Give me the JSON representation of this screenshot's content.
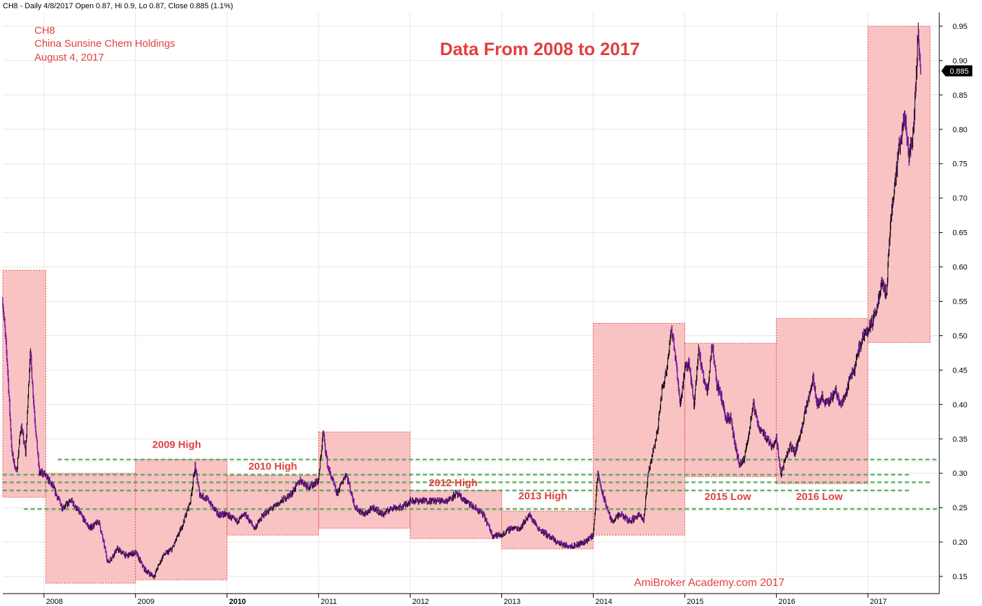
{
  "header": {
    "ohlc_line": "CH8 - Daily 4/8/2017 Open 0.87, Hi 0.9, Lo 0.87, Close 0.885 (1.1%)"
  },
  "info": {
    "ticker": "CH8",
    "company": "China Sunsine Chem Holdings",
    "date": "August 4, 2017"
  },
  "colors": {
    "box_fill": "#f9b8b8",
    "box_border": "#e05050",
    "level_line": "#4caf50",
    "annotation": "#e04040",
    "bars_up": "#000000",
    "bars_down": "#7b1fa2"
  },
  "chart_data": {
    "type": "line",
    "title": "Data From 2008 to 2017",
    "watermark": "AmiBroker Academy.com 2017",
    "xlim": [
      2007.55,
      2017.78
    ],
    "ylim": [
      0.125,
      0.97
    ],
    "y_ticks": [
      0.15,
      0.2,
      0.25,
      0.3,
      0.35,
      0.4,
      0.45,
      0.5,
      0.55,
      0.6,
      0.65,
      0.7,
      0.75,
      0.8,
      0.85,
      0.9,
      0.95
    ],
    "y_tick_labels": [
      "0.15",
      "0.20",
      "0.25",
      "0.30",
      "0.35",
      "0.40",
      "0.45",
      "0.50",
      "0.55",
      "0.60",
      "0.65",
      "0.70",
      "0.75",
      "0.80",
      "0.85",
      "0.90",
      "0.95"
    ],
    "x_ticks": [
      2008,
      2009,
      2010,
      2011,
      2012,
      2013,
      2014,
      2015,
      2016,
      2017
    ],
    "x_tick_labels": [
      "2008",
      "2009",
      "2010",
      "2011",
      "2012",
      "2013",
      "2014",
      "2015",
      "2016",
      "2017"
    ],
    "last_close": 0.885,
    "last_close_label": "0.885",
    "price_series": {
      "t": [
        2007.55,
        2007.6,
        2007.65,
        2007.7,
        2007.75,
        2007.8,
        2007.85,
        2007.9,
        2007.95,
        2008.0,
        2008.1,
        2008.2,
        2008.3,
        2008.4,
        2008.5,
        2008.6,
        2008.7,
        2008.8,
        2008.9,
        2009.0,
        2009.1,
        2009.2,
        2009.3,
        2009.4,
        2009.5,
        2009.6,
        2009.65,
        2009.7,
        2009.8,
        2009.9,
        2010.0,
        2010.1,
        2010.2,
        2010.3,
        2010.4,
        2010.5,
        2010.6,
        2010.7,
        2010.8,
        2010.9,
        2011.0,
        2011.05,
        2011.1,
        2011.2,
        2011.3,
        2011.4,
        2011.5,
        2011.6,
        2011.7,
        2011.8,
        2011.9,
        2012.0,
        2012.2,
        2012.4,
        2012.5,
        2012.6,
        2012.7,
        2012.8,
        2012.9,
        2013.0,
        2013.1,
        2013.2,
        2013.3,
        2013.4,
        2013.5,
        2013.6,
        2013.7,
        2013.8,
        2013.9,
        2014.0,
        2014.05,
        2014.1,
        2014.2,
        2014.3,
        2014.4,
        2014.5,
        2014.55,
        2014.6,
        2014.65,
        2014.7,
        2014.75,
        2014.8,
        2014.85,
        2014.9,
        2014.95,
        2015.0,
        2015.05,
        2015.1,
        2015.15,
        2015.2,
        2015.25,
        2015.3,
        2015.35,
        2015.4,
        2015.45,
        2015.5,
        2015.55,
        2015.6,
        2015.65,
        2015.7,
        2015.75,
        2015.8,
        2015.85,
        2015.9,
        2015.95,
        2016.0,
        2016.05,
        2016.1,
        2016.15,
        2016.2,
        2016.25,
        2016.3,
        2016.35,
        2016.4,
        2016.45,
        2016.5,
        2016.55,
        2016.6,
        2016.65,
        2016.7,
        2016.75,
        2016.8,
        2016.85,
        2016.9,
        2016.95,
        2017.0,
        2017.05,
        2017.1,
        2017.15,
        2017.2,
        2017.25,
        2017.3,
        2017.35,
        2017.4,
        2017.45,
        2017.5,
        2017.55,
        2017.58
      ],
      "close": [
        0.55,
        0.46,
        0.33,
        0.3,
        0.37,
        0.33,
        0.48,
        0.38,
        0.3,
        0.3,
        0.28,
        0.25,
        0.26,
        0.24,
        0.22,
        0.23,
        0.17,
        0.19,
        0.18,
        0.185,
        0.16,
        0.15,
        0.18,
        0.19,
        0.22,
        0.26,
        0.31,
        0.27,
        0.26,
        0.24,
        0.24,
        0.23,
        0.24,
        0.22,
        0.24,
        0.25,
        0.26,
        0.27,
        0.29,
        0.28,
        0.29,
        0.36,
        0.31,
        0.27,
        0.3,
        0.25,
        0.24,
        0.25,
        0.24,
        0.25,
        0.25,
        0.26,
        0.26,
        0.26,
        0.27,
        0.26,
        0.25,
        0.24,
        0.21,
        0.21,
        0.22,
        0.22,
        0.24,
        0.22,
        0.21,
        0.2,
        0.195,
        0.195,
        0.2,
        0.21,
        0.3,
        0.27,
        0.23,
        0.24,
        0.23,
        0.24,
        0.23,
        0.3,
        0.33,
        0.36,
        0.42,
        0.45,
        0.51,
        0.47,
        0.4,
        0.45,
        0.46,
        0.4,
        0.48,
        0.44,
        0.42,
        0.49,
        0.43,
        0.41,
        0.38,
        0.38,
        0.34,
        0.31,
        0.32,
        0.36,
        0.4,
        0.37,
        0.36,
        0.35,
        0.34,
        0.35,
        0.3,
        0.32,
        0.34,
        0.33,
        0.35,
        0.38,
        0.41,
        0.44,
        0.4,
        0.41,
        0.4,
        0.41,
        0.42,
        0.4,
        0.41,
        0.44,
        0.45,
        0.48,
        0.5,
        0.51,
        0.52,
        0.54,
        0.58,
        0.56,
        0.67,
        0.73,
        0.78,
        0.82,
        0.76,
        0.8,
        0.94,
        0.885
      ]
    },
    "boxes": [
      {
        "x0": 2007.55,
        "x1": 2008.02,
        "y0": 0.265,
        "y1": 0.595
      },
      {
        "x0": 2008.02,
        "x1": 2009.0,
        "y0": 0.14,
        "y1": 0.3
      },
      {
        "x0": 2009.0,
        "x1": 2010.0,
        "y0": 0.145,
        "y1": 0.32
      },
      {
        "x0": 2010.0,
        "x1": 2011.0,
        "y0": 0.21,
        "y1": 0.297
      },
      {
        "x0": 2011.0,
        "x1": 2012.0,
        "y0": 0.22,
        "y1": 0.36
      },
      {
        "x0": 2012.0,
        "x1": 2013.0,
        "y0": 0.205,
        "y1": 0.275
      },
      {
        "x0": 2013.0,
        "x1": 2014.0,
        "y0": 0.19,
        "y1": 0.245
      },
      {
        "x0": 2014.0,
        "x1": 2015.0,
        "y0": 0.21,
        "y1": 0.518
      },
      {
        "x0": 2015.0,
        "x1": 2016.0,
        "y0": 0.295,
        "y1": 0.489
      },
      {
        "x0": 2016.0,
        "x1": 2017.0,
        "y0": 0.285,
        "y1": 0.525
      },
      {
        "x0": 2017.0,
        "x1": 2017.68,
        "y0": 0.49,
        "y1": 0.95
      }
    ],
    "levels": [
      {
        "y": 0.32,
        "x0": 2008.15,
        "x1": 2017.78
      },
      {
        "y": 0.298,
        "x0": 2007.55,
        "x1": 2017.45
      },
      {
        "y": 0.287,
        "x0": 2007.55,
        "x1": 2017.7
      },
      {
        "y": 0.275,
        "x0": 2007.55,
        "x1": 2017.45
      },
      {
        "y": 0.248,
        "x0": 2007.78,
        "x1": 2017.78
      }
    ],
    "annotations": [
      {
        "text": "2009 High",
        "x": 2009.45,
        "y": 0.337
      },
      {
        "text": "2010 High",
        "x": 2010.5,
        "y": 0.305
      },
      {
        "text": "2012 High",
        "x": 2012.47,
        "y": 0.281
      },
      {
        "text": "2013 High",
        "x": 2013.45,
        "y": 0.262
      },
      {
        "text": "2015 Low",
        "x": 2015.47,
        "y": 0.261
      },
      {
        "text": "2016 Low",
        "x": 2016.47,
        "y": 0.261
      }
    ]
  }
}
